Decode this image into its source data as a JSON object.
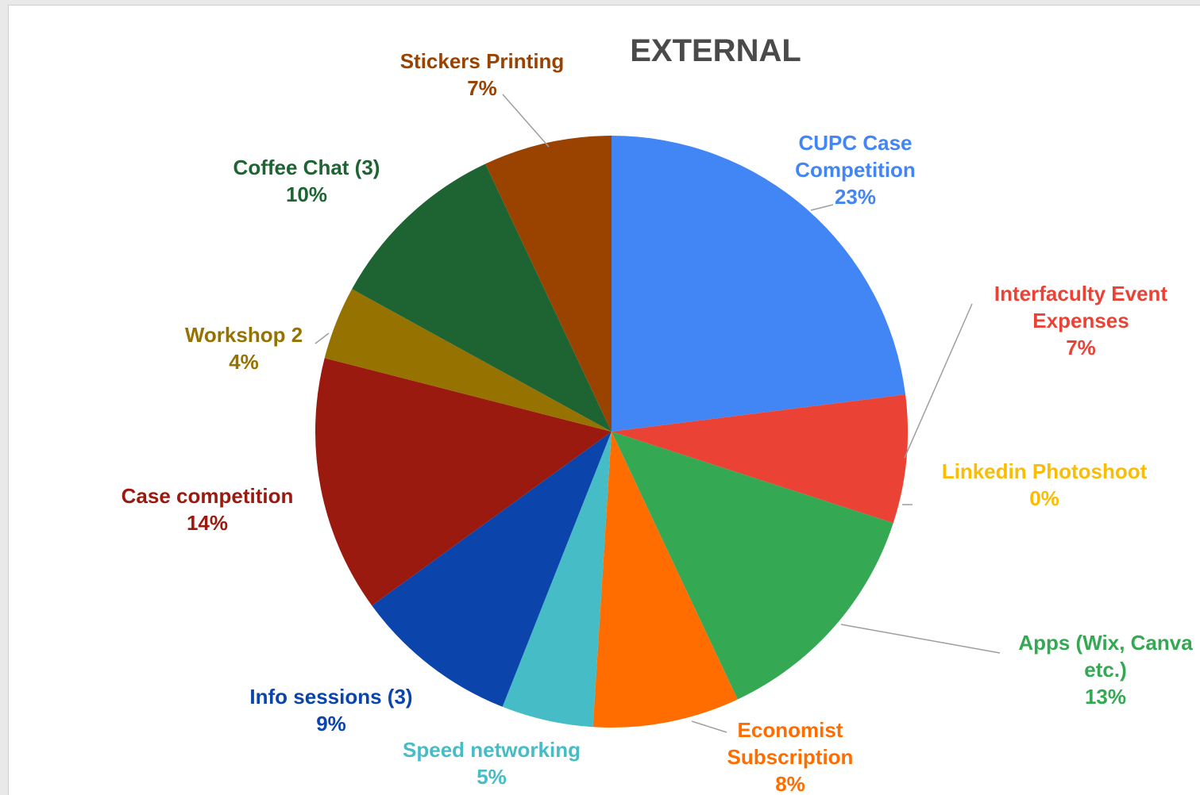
{
  "chart_data": {
    "type": "pie",
    "title": "EXTERNAL",
    "start_angle_deg": 0,
    "direction": "clockwise",
    "slices": [
      {
        "name": "CUPC Case Competition",
        "label_lines": [
          "CUPC Case",
          "Competition"
        ],
        "value": 23,
        "value_label": "23%",
        "color": "#4285f4",
        "label_color": "#4285f4"
      },
      {
        "name": "Interfaculty Event Expenses",
        "label_lines": [
          "Interfaculty Event",
          "Expenses"
        ],
        "value": 7,
        "value_label": "7%",
        "color": "#ea4335",
        "label_color": "#ea4335"
      },
      {
        "name": "Linkedin Photoshoot",
        "label_lines": [
          "Linkedin Photoshoot"
        ],
        "value": 0,
        "value_label": "0%",
        "color": "#fbbc04",
        "label_color": "#fbbc04"
      },
      {
        "name": "Apps (Wix, Canva etc.)",
        "label_lines": [
          "Apps (Wix, Canva",
          "etc.)"
        ],
        "value": 13,
        "value_label": "13%",
        "color": "#34a853",
        "label_color": "#34a853"
      },
      {
        "name": "Economist Subscription",
        "label_lines": [
          "Economist",
          "Subscription"
        ],
        "value": 8,
        "value_label": "8%",
        "color": "#ff6d01",
        "label_color": "#ff6d01"
      },
      {
        "name": "Speed networking",
        "label_lines": [
          "Speed networking"
        ],
        "value": 5,
        "value_label": "5%",
        "color": "#46bdc6",
        "label_color": "#46bdc6"
      },
      {
        "name": "Info sessions (3)",
        "label_lines": [
          "Info sessions (3)"
        ],
        "value": 9,
        "value_label": "9%",
        "color": "#0b45ac",
        "label_color": "#0b45ac"
      },
      {
        "name": "Case competition",
        "label_lines": [
          "Case competition"
        ],
        "value": 14,
        "value_label": "14%",
        "color": "#9a1a10",
        "label_color": "#9a1a10"
      },
      {
        "name": "Workshop 2",
        "label_lines": [
          "Workshop 2"
        ],
        "value": 4,
        "value_label": "4%",
        "color": "#967200",
        "label_color": "#967200"
      },
      {
        "name": "Coffee Chat (3)",
        "label_lines": [
          "Coffee Chat (3)"
        ],
        "value": 10,
        "value_label": "10%",
        "color": "#1e6432",
        "label_color": "#1e6432"
      },
      {
        "name": "Stickers Printing",
        "label_lines": [
          "Stickers Printing"
        ],
        "value": 7,
        "value_label": "7%",
        "color": "#9a4300",
        "label_color": "#9a4300"
      }
    ],
    "legend": "none",
    "label_position": "outside with leader lines"
  }
}
